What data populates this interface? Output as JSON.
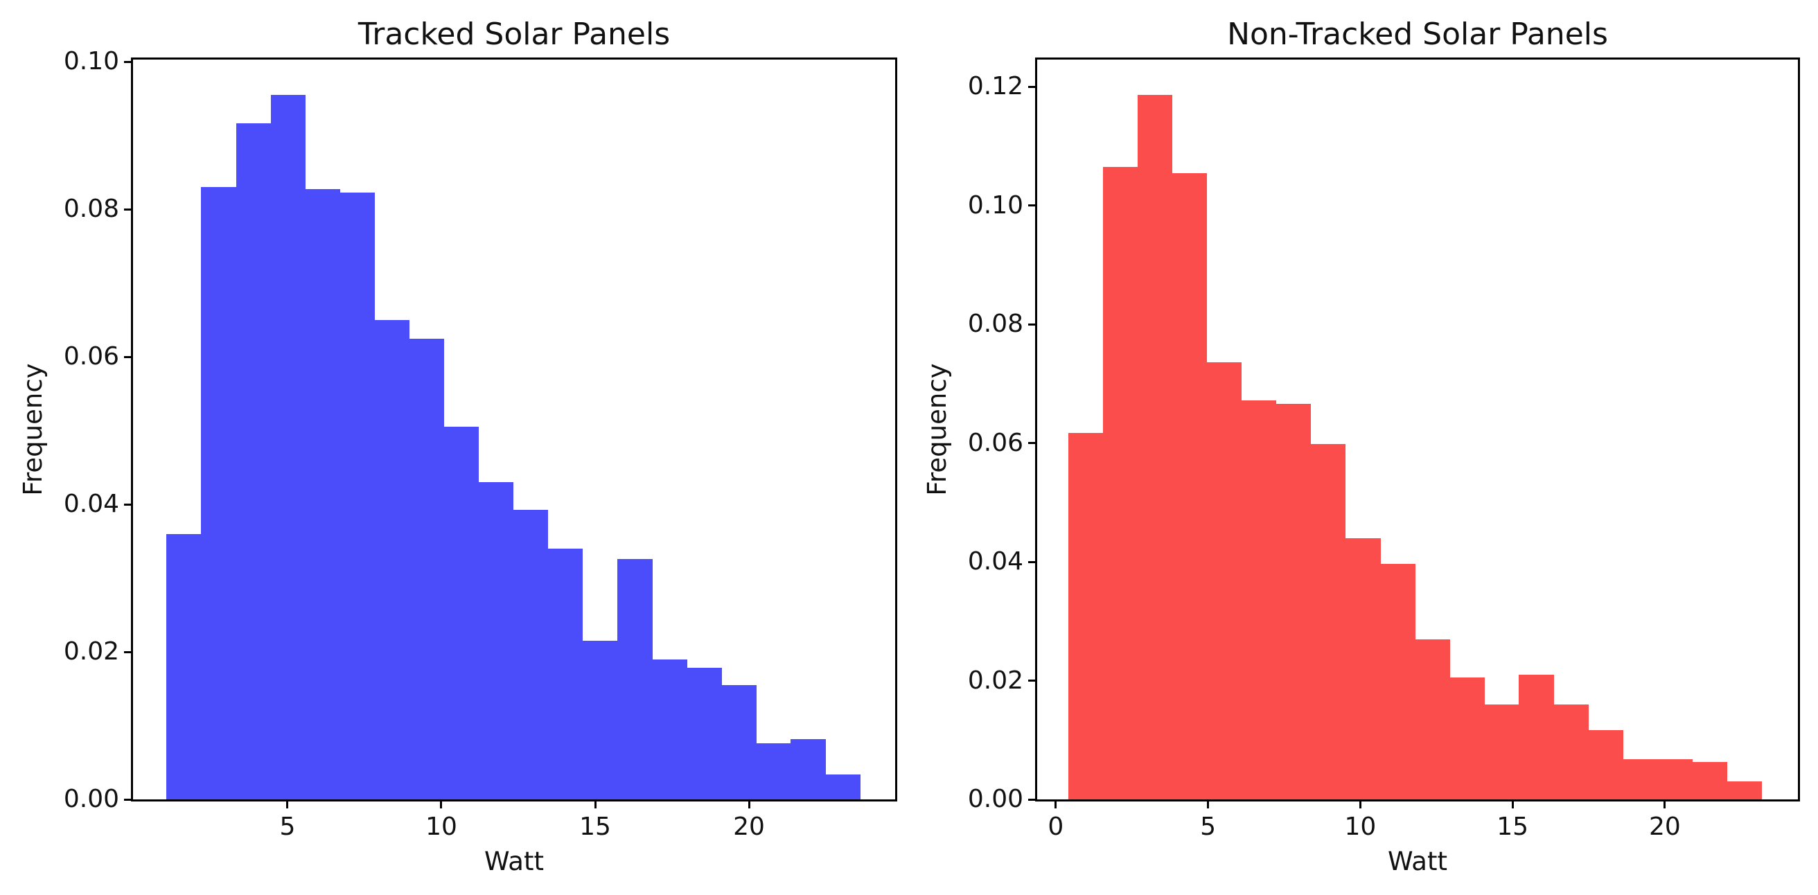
{
  "figure": {
    "background": "#ffffff"
  },
  "chart_data": [
    {
      "type": "bar",
      "subtype": "histogram",
      "title": "Tracked Solar Panels",
      "xlabel": "Watt",
      "ylabel": "Frequency",
      "bar_color": "#4c4dfa",
      "xlim": [
        -0.02,
        24.75
      ],
      "ylim": [
        0,
        0.1003
      ],
      "x_ticks": [
        5,
        10,
        15,
        20
      ],
      "y_tick_values": [
        0.0,
        0.02,
        0.04,
        0.06,
        0.08,
        0.1
      ],
      "y_tick_labels": [
        "0.00",
        "0.02",
        "0.04",
        "0.06",
        "0.08",
        "0.10"
      ],
      "grid": false,
      "legend": null,
      "bin_start": 1.07,
      "bin_width": 1.127,
      "frequencies": [
        0.036,
        0.083,
        0.0917,
        0.0955,
        0.0827,
        0.0823,
        0.065,
        0.0625,
        0.0505,
        0.043,
        0.0393,
        0.034,
        0.0215,
        0.0326,
        0.019,
        0.0178,
        0.0155,
        0.0076,
        0.0082,
        0.0034
      ]
    },
    {
      "type": "bar",
      "subtype": "histogram",
      "title": "Non-Tracked Solar Panels",
      "xlabel": "Watt",
      "ylabel": "Frequency",
      "bar_color": "#fc4d4d",
      "xlim": [
        -0.61,
        24.37
      ],
      "ylim": [
        0,
        0.1246
      ],
      "x_ticks": [
        0,
        5,
        10,
        15,
        20
      ],
      "y_tick_values": [
        0.0,
        0.02,
        0.04,
        0.06,
        0.08,
        0.1,
        0.12
      ],
      "y_tick_labels": [
        "0.00",
        "0.02",
        "0.04",
        "0.06",
        "0.08",
        "0.10",
        "0.12"
      ],
      "grid": false,
      "legend": null,
      "bin_start": 0.41,
      "bin_width": 1.138,
      "frequencies": [
        0.0617,
        0.1065,
        0.1187,
        0.1055,
        0.0736,
        0.0672,
        0.0666,
        0.0598,
        0.044,
        0.0397,
        0.027,
        0.0205,
        0.016,
        0.021,
        0.016,
        0.0117,
        0.0068,
        0.0068,
        0.0063,
        0.003
      ]
    }
  ]
}
